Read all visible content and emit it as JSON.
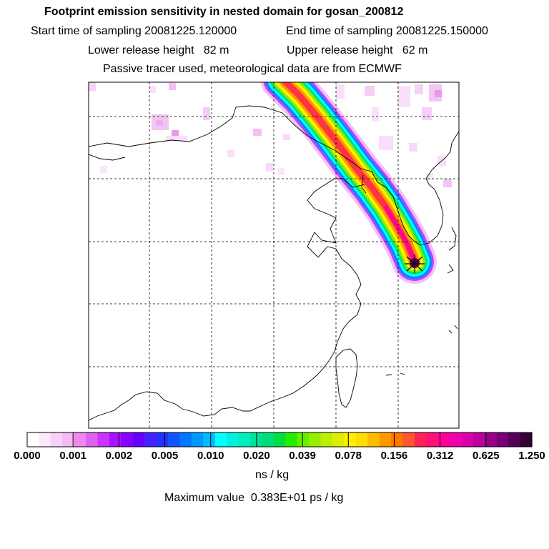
{
  "header": {
    "title": "Footprint emission sensitivity in nested domain for gosan_200812",
    "start_label": "Start time of sampling 20081225.120000",
    "end_label": "End time of sampling 20081225.150000",
    "lower_label": "Lower release height   82 m",
    "upper_label": "Upper release height   62 m",
    "tracer_label": "Passive tracer used, meteorological data are from ECMWF"
  },
  "legend": {
    "ticks": [
      "0.000",
      "0.001",
      "0.002",
      "0.005",
      "0.010",
      "0.020",
      "0.039",
      "0.078",
      "0.156",
      "0.312",
      "0.625",
      "1.250"
    ],
    "unit": "ns / kg",
    "max_label": "Maximum value  0.383E+01 ps / kg",
    "colors": [
      "#ffffff",
      "#fce8fc",
      "#f8d0f8",
      "#f4b8f4",
      "#ee88ee",
      "#e060ee",
      "#cc33ff",
      "#aa11ff",
      "#8800ff",
      "#6600ff",
      "#4422ff",
      "#2233ff",
      "#1155ff",
      "#0077ff",
      "#0099ff",
      "#00bbff",
      "#00ffff",
      "#00f0dd",
      "#00eebb",
      "#00e099",
      "#00dd77",
      "#00dd44",
      "#22ee00",
      "#66ee00",
      "#99ee00",
      "#bbee00",
      "#ddee00",
      "#ffee00",
      "#ffdd00",
      "#ffbb00",
      "#ff9900",
      "#ff7700",
      "#ff5533",
      "#ff2255",
      "#ff1177",
      "#ff0099",
      "#ee00aa",
      "#dd00aa",
      "#bb0099",
      "#990088",
      "#770077",
      "#550055",
      "#330033"
    ]
  },
  "map": {
    "receptor": "gosan"
  }
}
